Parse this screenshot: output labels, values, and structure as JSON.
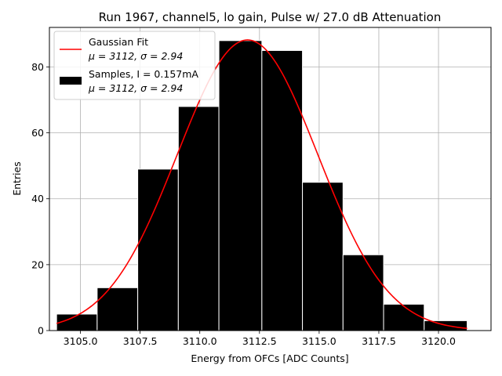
{
  "chart_data": {
    "type": "bar",
    "title": "Run 1967, channel5, lo gain, Pulse w/ 27.0 dB Attenuation",
    "xlabel": "Energy from OFCs [ADC Counts]",
    "ylabel": "Entries",
    "xlim": [
      3103.7,
      3122.2
    ],
    "ylim": [
      0,
      92
    ],
    "xticks": [
      3105.0,
      3107.5,
      3110.0,
      3112.5,
      3115.0,
      3117.5,
      3120.0
    ],
    "xtick_labels": [
      "3105.0",
      "3107.5",
      "3110.0",
      "3112.5",
      "3115.0",
      "3117.5",
      "3120.0"
    ],
    "yticks": [
      0,
      20,
      40,
      60,
      80
    ],
    "ytick_labels": [
      "0",
      "20",
      "40",
      "60",
      "80"
    ],
    "grid": true,
    "legend_position": "top-left",
    "bin_edges": [
      3104.0,
      3105.7,
      3107.4,
      3109.1,
      3110.8,
      3112.6,
      3114.3,
      3116.0,
      3117.7,
      3119.4,
      3121.2
    ],
    "series": [
      {
        "kind": "histogram",
        "name": "Samples, I = 0.157mA",
        "name2": "μ = 3112, σ = 2.94",
        "color": "#000000",
        "edge_color": "#ffffff",
        "values": [
          5,
          13,
          49,
          68,
          88,
          85,
          45,
          23,
          8,
          3
        ]
      },
      {
        "kind": "line",
        "name": "Gaussian Fit",
        "name2": "μ = 3112, σ = 2.94",
        "color": "#ff0000",
        "fit": {
          "amplitude": 88.2,
          "mu": 3112.0,
          "sigma": 2.94,
          "x_range": [
            3104.0,
            3121.2
          ]
        }
      }
    ]
  }
}
